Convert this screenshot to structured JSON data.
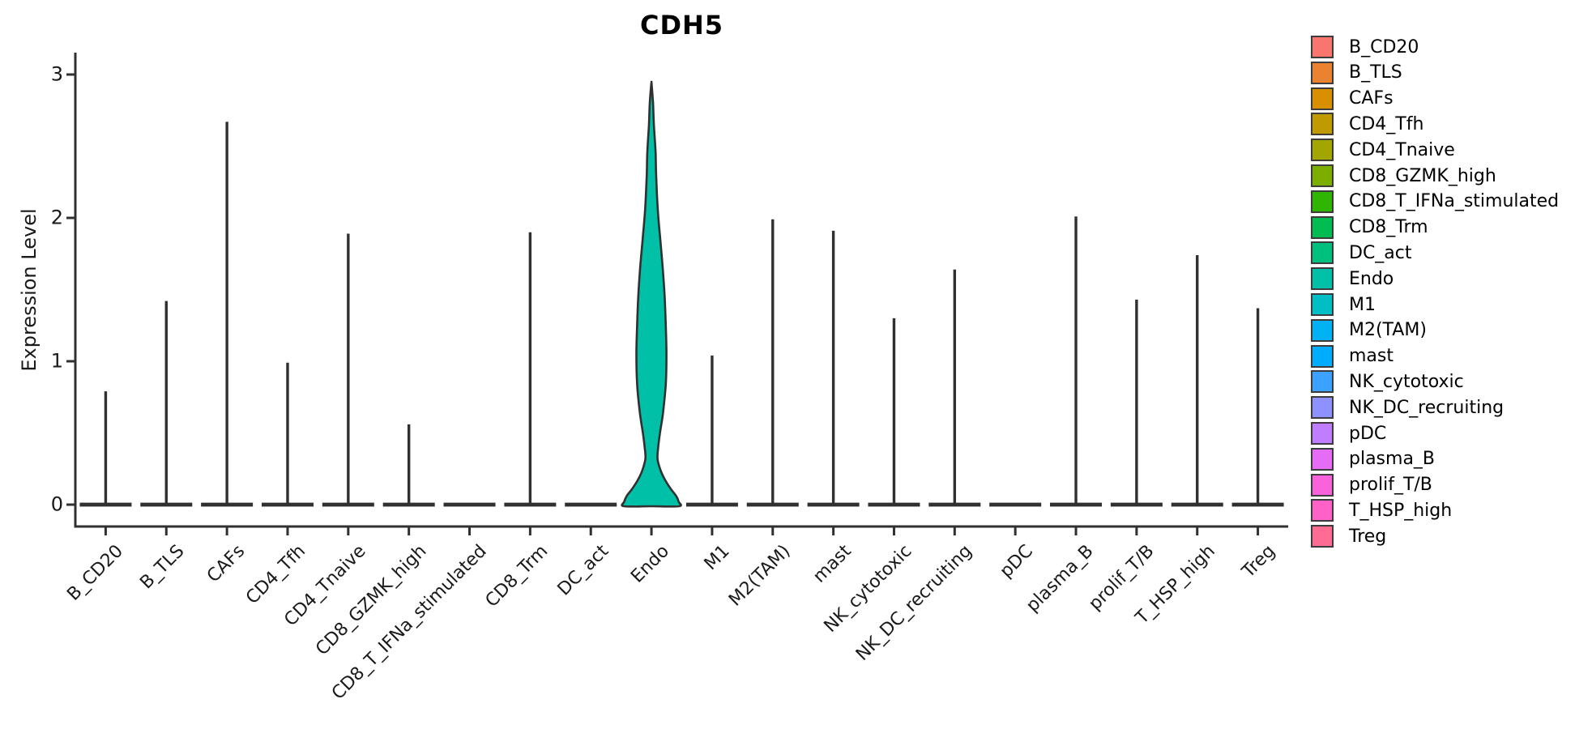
{
  "chart_data": {
    "type": "violin",
    "title": "CDH5",
    "ylabel": "Expression Level",
    "xlabel": "",
    "ylim": [
      0,
      3
    ],
    "yticks": [
      "0",
      "1",
      "2",
      "3"
    ],
    "grid": false,
    "legend_position": "right",
    "x_tick_rotation": 45,
    "categories": [
      "B_CD20",
      "B_TLS",
      "CAFs",
      "CD4_Tfh",
      "CD4_Tnaive",
      "CD8_GZMK_high",
      "CD8_T_IFNa_stimulated",
      "CD8_Trm",
      "DC_act",
      "Endo",
      "M1",
      "M2(TAM)",
      "mast",
      "NK_cytotoxic",
      "NK_DC_recruiting",
      "pDC",
      "plasma_B",
      "prolif_T/B",
      "T_HSP_high",
      "Treg"
    ],
    "colors": [
      "#F8766D",
      "#EA8331",
      "#D89000",
      "#C09B00",
      "#A3A500",
      "#7CAE00",
      "#2FB600",
      "#00BC51",
      "#00C07D",
      "#00C1A7",
      "#00BFC4",
      "#00B2F3",
      "#00ACFC",
      "#3DA1FF",
      "#8F91FF",
      "#C17DFF",
      "#E56DF5",
      "#FA62DC",
      "#FF61C7",
      "#FF6B93"
    ],
    "series": [
      {
        "name": "max_expression_spike",
        "values": [
          0.79,
          1.42,
          2.67,
          0.99,
          1.89,
          0.56,
          0,
          1.9,
          0,
          2.95,
          1.04,
          1.99,
          1.91,
          1.3,
          1.64,
          0,
          2.01,
          1.43,
          1.74,
          1.37
        ]
      }
    ],
    "violins": [
      {
        "category": "Endo",
        "color": "#00C1A7",
        "max_value": 2.95,
        "density_profile_value_halfwidth": [
          [
            2.95,
            0.03
          ],
          [
            2.8,
            0.06
          ],
          [
            2.65,
            0.09
          ],
          [
            2.46,
            0.15
          ],
          [
            2.3,
            0.17
          ],
          [
            2.06,
            0.23
          ],
          [
            1.85,
            0.32
          ],
          [
            1.65,
            0.41
          ],
          [
            1.45,
            0.48
          ],
          [
            1.25,
            0.52
          ],
          [
            1.05,
            0.545
          ],
          [
            0.84,
            0.52
          ],
          [
            0.64,
            0.42
          ],
          [
            0.5,
            0.31
          ],
          [
            0.4,
            0.245
          ],
          [
            0.32,
            0.22
          ],
          [
            0.24,
            0.33
          ],
          [
            0.17,
            0.5
          ],
          [
            0.11,
            0.7
          ],
          [
            0.06,
            0.9
          ],
          [
            0.02,
            0.99
          ],
          [
            0.0,
            1.0
          ]
        ]
      }
    ],
    "baseline_note": "all 20 categories show a flat density bar at expression 0; thin vertical spikes mark the sparse high-expression tail",
    "line_color": "#303030"
  },
  "legend": {
    "items": [
      "B_CD20",
      "B_TLS",
      "CAFs",
      "CD4_Tfh",
      "CD4_Tnaive",
      "CD8_GZMK_high",
      "CD8_T_IFNa_stimulated",
      "CD8_Trm",
      "DC_act",
      "Endo",
      "M1",
      "M2(TAM)",
      "mast",
      "NK_cytotoxic",
      "NK_DC_recruiting",
      "pDC",
      "plasma_B",
      "prolif_T/B",
      "T_HSP_high",
      "Treg"
    ]
  }
}
